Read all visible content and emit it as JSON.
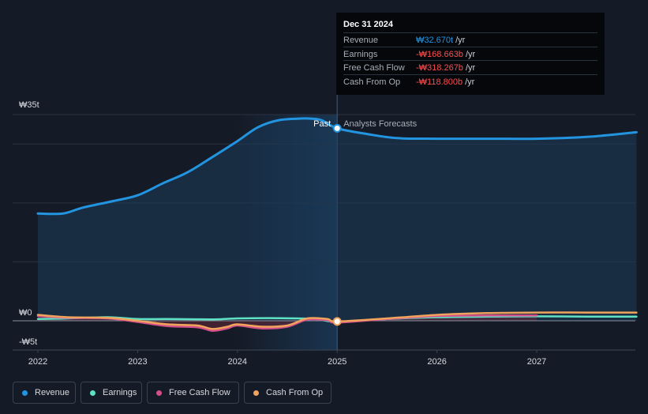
{
  "colors": {
    "revenue": "#2394df",
    "earnings": "#5fe1c4",
    "free_cash_flow": "#d34f8b",
    "cash_from_op": "#f0a35d",
    "negative": "#ff4d4d",
    "past_highlight": "#1b3a5a",
    "background": "#151b26"
  },
  "tooltip": {
    "date": "Dec 31 2024",
    "rows": [
      {
        "label": "Revenue",
        "value": "₩32.670t",
        "unit": "/yr",
        "color": "#2394df"
      },
      {
        "label": "Earnings",
        "value": "-₩168.663b",
        "unit": "/yr",
        "color": "#ff4d4d"
      },
      {
        "label": "Free Cash Flow",
        "value": "-₩318.267b",
        "unit": "/yr",
        "color": "#ff4d4d"
      },
      {
        "label": "Cash From Op",
        "value": "-₩118.800b",
        "unit": "/yr",
        "color": "#ff4d4d"
      }
    ]
  },
  "legend": [
    {
      "label": "Revenue",
      "color": "#2394df"
    },
    {
      "label": "Earnings",
      "color": "#5fe1c4"
    },
    {
      "label": "Free Cash Flow",
      "color": "#d34f8b"
    },
    {
      "label": "Cash From Op",
      "color": "#f0a35d"
    }
  ],
  "chart_data": {
    "type": "area",
    "y_unit": "₩ trillion",
    "ylim": [
      -5,
      35
    ],
    "y_tick_labels": [
      "₩35t",
      "₩0",
      "-₩5t"
    ],
    "x_tick_labels": [
      "2022",
      "2023",
      "2024",
      "2025",
      "2026",
      "2027"
    ],
    "section_labels": {
      "past": "Past",
      "forecast": "Analysts Forecasts"
    },
    "forecast_start": 2025.0,
    "series": [
      {
        "name": "Revenue",
        "color": "#2394df",
        "fill": true,
        "x": [
          2022.0,
          2022.25,
          2022.45,
          2022.75,
          2023.0,
          2023.25,
          2023.5,
          2023.75,
          2024.0,
          2024.2,
          2024.4,
          2024.6,
          2024.75,
          2024.85,
          2025.0,
          2025.3,
          2025.6,
          2026.0,
          2026.5,
          2027.0,
          2027.5,
          2028.0
        ],
        "y": [
          18.2,
          18.2,
          19.2,
          20.3,
          21.3,
          23.3,
          25.2,
          27.8,
          30.5,
          32.8,
          34.0,
          34.3,
          34.3,
          34.0,
          32.67,
          31.7,
          31.0,
          30.9,
          30.9,
          30.9,
          31.2,
          32.0
        ]
      },
      {
        "name": "Earnings",
        "color": "#5fe1c4",
        "fill": false,
        "x": [
          2022.0,
          2022.3,
          2022.7,
          2023.0,
          2023.3,
          2023.6,
          2023.8,
          2024.0,
          2024.3,
          2024.6,
          2024.8,
          2025.0,
          2025.5,
          2026.0,
          2026.5,
          2027.0,
          2027.5,
          2028.0
        ],
        "y": [
          0.3,
          0.4,
          0.6,
          0.3,
          0.3,
          0.25,
          0.25,
          0.4,
          0.45,
          0.4,
          0.3,
          -0.17,
          0.3,
          0.6,
          0.7,
          0.75,
          0.7,
          0.7
        ]
      },
      {
        "name": "Free Cash Flow",
        "color": "#d34f8b",
        "fill": true,
        "x": [
          2022.0,
          2022.3,
          2022.7,
          2023.0,
          2023.3,
          2023.6,
          2023.75,
          2023.9,
          2024.0,
          2024.25,
          2024.5,
          2024.7,
          2024.9,
          2025.0,
          2025.5,
          2026.0,
          2026.5,
          2027.0
        ],
        "y": [
          0.8,
          0.5,
          0.4,
          -0.2,
          -0.9,
          -1.1,
          -1.7,
          -1.3,
          -0.8,
          -1.3,
          -1.0,
          0.2,
          0.1,
          -0.32,
          0.3,
          0.8,
          0.9,
          0.9
        ]
      },
      {
        "name": "Cash From Op",
        "color": "#f0a35d",
        "fill": false,
        "x": [
          2022.0,
          2022.3,
          2022.7,
          2023.0,
          2023.3,
          2023.6,
          2023.75,
          2023.9,
          2024.0,
          2024.25,
          2024.5,
          2024.7,
          2024.9,
          2025.0,
          2025.5,
          2026.0,
          2026.5,
          2027.0,
          2027.5,
          2028.0
        ],
        "y": [
          1.0,
          0.6,
          0.5,
          0.0,
          -0.6,
          -0.8,
          -1.4,
          -1.0,
          -0.6,
          -1.0,
          -0.8,
          0.4,
          0.3,
          -0.12,
          0.4,
          1.0,
          1.3,
          1.4,
          1.4,
          1.4
        ]
      }
    ]
  }
}
